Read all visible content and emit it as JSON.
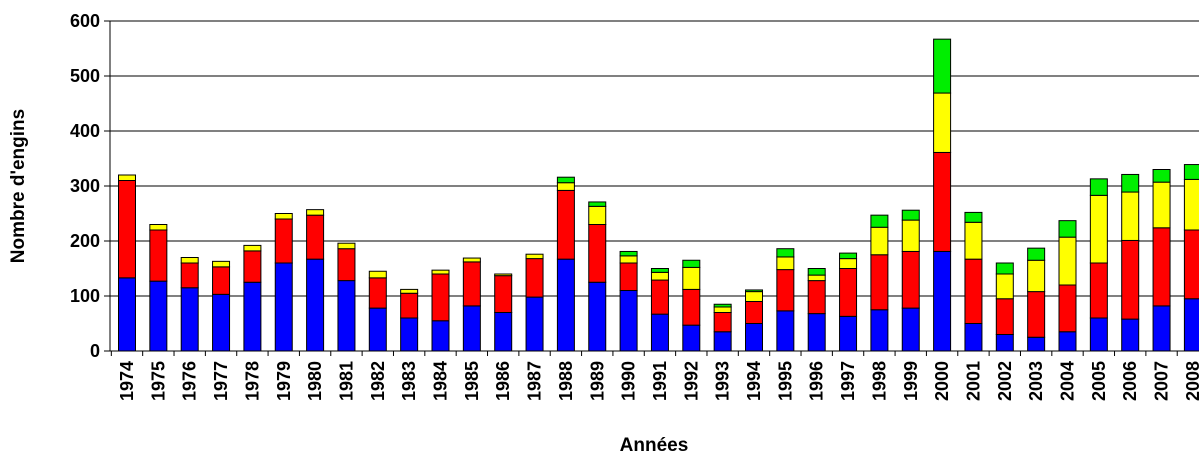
{
  "chart_data": {
    "type": "bar",
    "stacked": true,
    "xlabel": "Années",
    "ylabel": "Nombre d'engins",
    "ylim": [
      0,
      600
    ],
    "yticks": [
      0,
      100,
      200,
      300,
      400,
      500,
      600
    ],
    "grid": true,
    "legend": "none",
    "categories": [
      "1974",
      "1975",
      "1976",
      "1977",
      "1978",
      "1979",
      "1980",
      "1981",
      "1982",
      "1983",
      "1984",
      "1985",
      "1986",
      "1987",
      "1988",
      "1989",
      "1990",
      "1991",
      "1992",
      "1993",
      "1994",
      "1995",
      "1996",
      "1997",
      "1998",
      "1999",
      "2000",
      "2001",
      "2002",
      "2003",
      "2004",
      "2005",
      "2006",
      "2007",
      "2008"
    ],
    "series": [
      {
        "color": "#0000ff",
        "values": [
          133,
          127,
          115,
          103,
          125,
          160,
          167,
          128,
          78,
          60,
          55,
          82,
          70,
          98,
          167,
          125,
          110,
          67,
          47,
          35,
          50,
          73,
          68,
          63,
          75,
          78,
          181,
          50,
          30,
          25,
          35,
          60,
          58,
          82,
          95
        ]
      },
      {
        "color": "#ff0000",
        "values": [
          177,
          93,
          45,
          50,
          57,
          80,
          80,
          58,
          55,
          45,
          85,
          80,
          67,
          70,
          125,
          105,
          50,
          62,
          65,
          35,
          40,
          75,
          60,
          87,
          100,
          103,
          180,
          117,
          65,
          83,
          85,
          100,
          143,
          142,
          125
        ]
      },
      {
        "color": "#ffff00",
        "values": [
          10,
          10,
          10,
          10,
          10,
          10,
          10,
          10,
          12,
          7,
          7,
          7,
          3,
          8,
          14,
          33,
          13,
          14,
          40,
          10,
          18,
          23,
          10,
          18,
          50,
          57,
          108,
          67,
          45,
          57,
          87,
          123,
          88,
          83,
          92
        ]
      },
      {
        "color": "#00ee00",
        "values": [
          0,
          0,
          0,
          0,
          0,
          0,
          0,
          0,
          0,
          0,
          0,
          0,
          0,
          0,
          10,
          8,
          8,
          7,
          13,
          5,
          3,
          15,
          12,
          10,
          22,
          18,
          98,
          18,
          20,
          22,
          30,
          30,
          32,
          23,
          27
        ]
      }
    ]
  }
}
